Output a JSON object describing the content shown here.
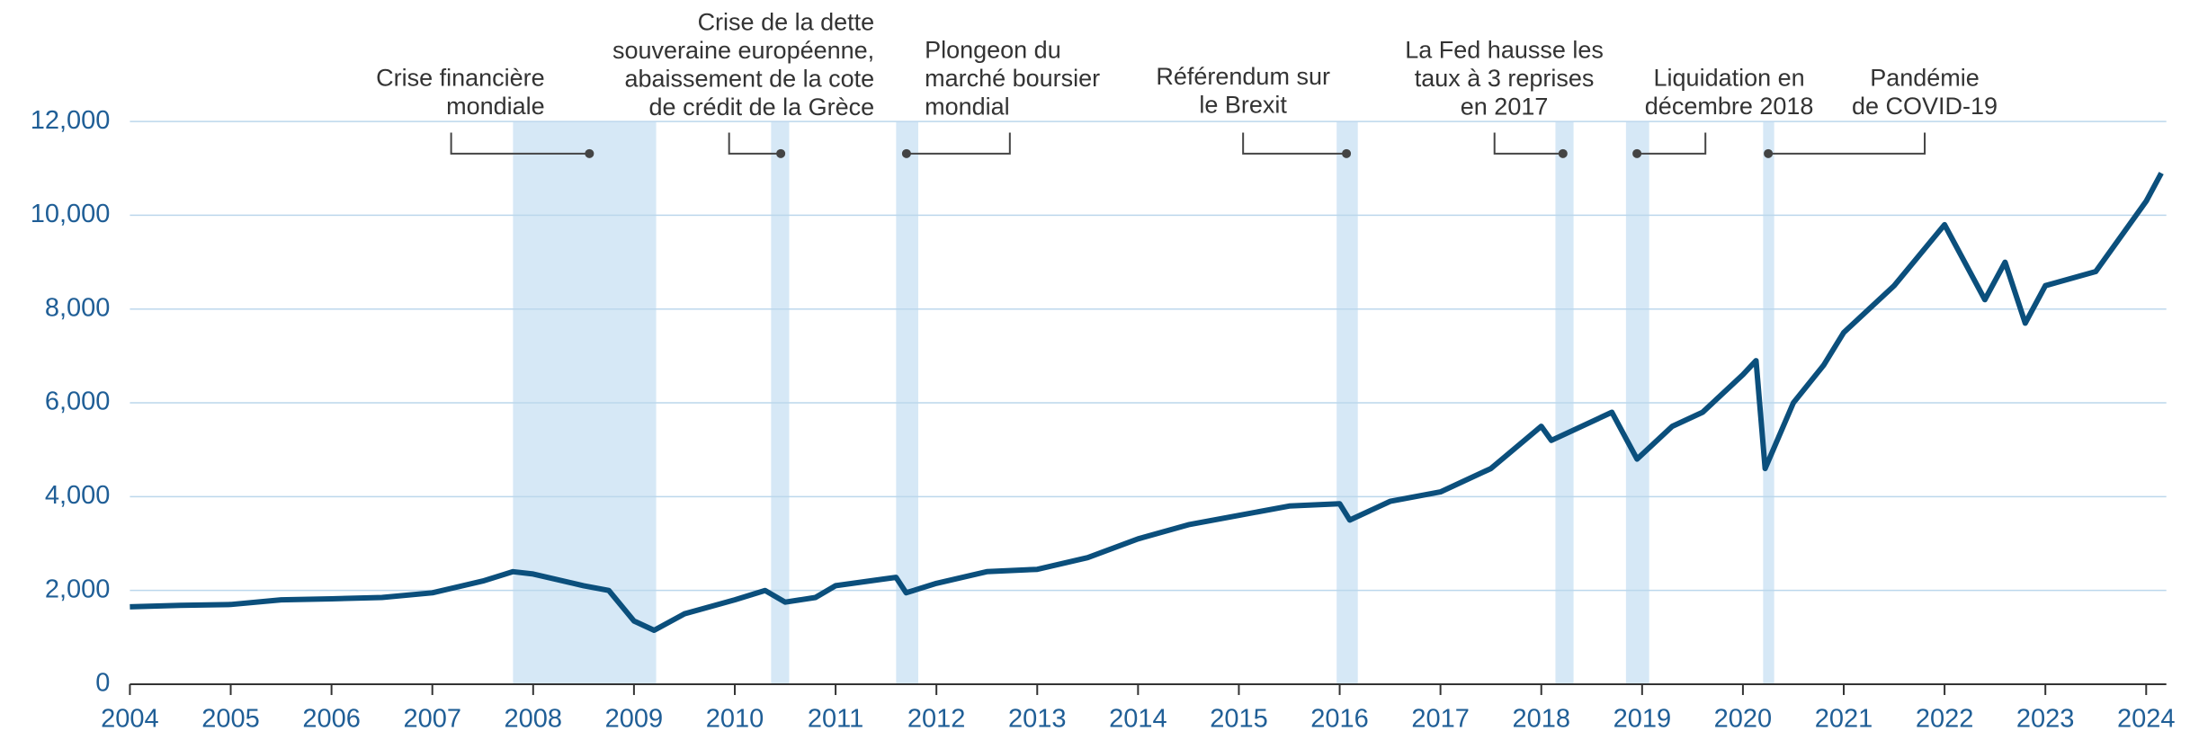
{
  "chart_data": {
    "type": "line",
    "color": "#0b4f7c",
    "band_color": "#d6e8f6",
    "grid": true,
    "xlim": [
      2004,
      2024.2
    ],
    "xticks": [
      2004,
      2005,
      2006,
      2007,
      2008,
      2009,
      2010,
      2011,
      2012,
      2013,
      2014,
      2015,
      2016,
      2017,
      2018,
      2019,
      2020,
      2021,
      2022,
      2023,
      2024
    ],
    "ylim": [
      0,
      12000
    ],
    "yticks": [
      0,
      {
        "value": 2000,
        "label": "2,000"
      },
      {
        "value": 4000,
        "label": "4,000"
      },
      {
        "value": 6000,
        "label": "6,000"
      },
      {
        "value": 8000,
        "label": "8,000"
      },
      {
        "value": 10000,
        "label": "10,000"
      },
      {
        "value": 12000,
        "label": "12,000"
      }
    ],
    "x": [
      2004.0,
      2004.5,
      2005.0,
      2005.5,
      2006.0,
      2006.5,
      2007.0,
      2007.5,
      2007.8,
      2008.0,
      2008.5,
      2008.75,
      2009.0,
      2009.2,
      2009.5,
      2010.0,
      2010.3,
      2010.5,
      2010.8,
      2011.0,
      2011.5,
      2011.6,
      2011.7,
      2012.0,
      2012.5,
      2013.0,
      2013.5,
      2014.0,
      2014.5,
      2015.0,
      2015.5,
      2016.0,
      2016.1,
      2016.5,
      2017.0,
      2017.5,
      2018.0,
      2018.1,
      2018.7,
      2018.95,
      2019.3,
      2019.6,
      2020.0,
      2020.13,
      2020.22,
      2020.5,
      2020.8,
      2021.0,
      2021.5,
      2022.0,
      2022.4,
      2022.6,
      2022.8,
      2023.0,
      2023.5,
      2024.0,
      2024.15
    ],
    "values": [
      1650,
      1680,
      1700,
      1800,
      1820,
      1850,
      1950,
      2200,
      2400,
      2350,
      2100,
      2000,
      1350,
      1150,
      1500,
      1800,
      2000,
      1750,
      1850,
      2100,
      2250,
      2280,
      1950,
      2150,
      2400,
      2450,
      2700,
      3100,
      3400,
      3600,
      3800,
      3850,
      3500,
      3900,
      4100,
      4600,
      5500,
      5200,
      5800,
      4800,
      5500,
      5800,
      6600,
      6900,
      4600,
      6000,
      6800,
      7500,
      8500,
      9800,
      8200,
      9000,
      7700,
      8500,
      8800,
      10300,
      10900
    ],
    "periods": [
      {
        "start": 2007.8,
        "end": 2009.22,
        "label": [
          "Crise financière",
          "mondiale"
        ]
      },
      {
        "start": 2010.36,
        "end": 2010.54,
        "label": [
          "Crise de la dette",
          "souveraine européenne,",
          "abaissement de la cote",
          "de crédit de la Grèce"
        ]
      },
      {
        "start": 2011.6,
        "end": 2011.82,
        "label": [
          "Plongeon du",
          "marché boursier",
          "mondial"
        ]
      },
      {
        "start": 2015.97,
        "end": 2016.18,
        "label": [
          "Référendum sur",
          "le Brexit"
        ]
      },
      {
        "start": 2018.14,
        "end": 2018.32,
        "label": [
          "La Fed hausse les",
          "taux à 3 reprises",
          "en 2017"
        ]
      },
      {
        "start": 2018.84,
        "end": 2019.07,
        "label": [
          "Liquidation en",
          "décembre 2018"
        ]
      },
      {
        "start": 2020.2,
        "end": 2020.31,
        "label": [
          "Pandémie",
          "de COVID-19"
        ]
      }
    ]
  }
}
